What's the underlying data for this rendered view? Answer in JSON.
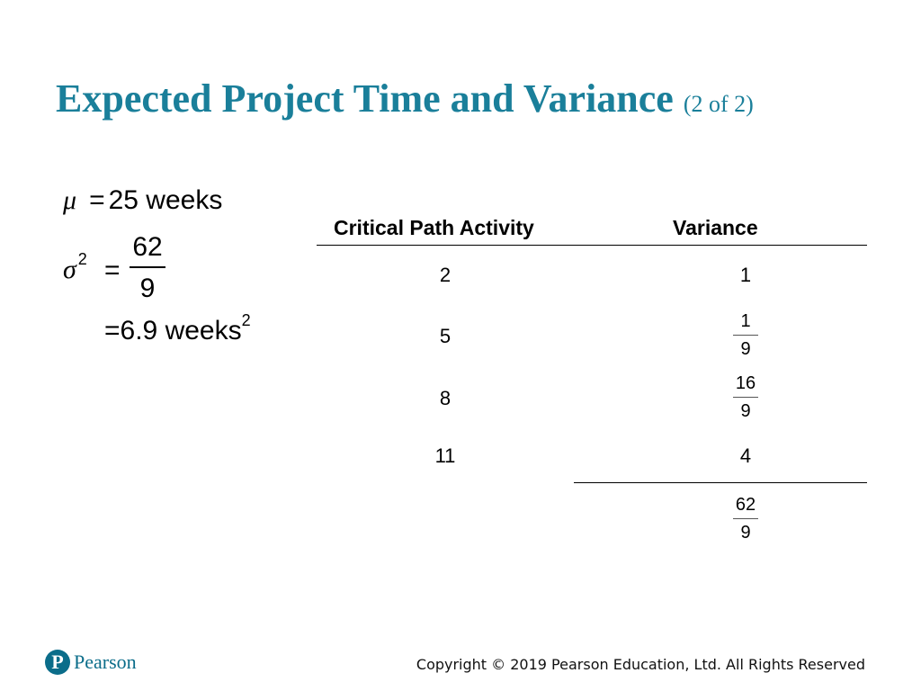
{
  "title": {
    "main": "Expected Project Time and Variance",
    "sub": "(2 of 2)"
  },
  "formulas": {
    "mu_symbol": "μ",
    "mu_rhs": "25 weeks",
    "sigma_symbol": "σ",
    "sigma_exp": "2",
    "equals": "=",
    "sigma_frac_num": "62",
    "sigma_frac_den": "9",
    "approx_value": "6.9 weeks",
    "approx_exp": "2"
  },
  "table": {
    "headers": {
      "activity": "Critical Path Activity",
      "variance": "Variance"
    },
    "rows": [
      {
        "activity": "2",
        "variance": "1"
      },
      {
        "activity": "5",
        "variance_num": "1",
        "variance_den": "9"
      },
      {
        "activity": "8",
        "variance_num": "16",
        "variance_den": "9"
      },
      {
        "activity": "11",
        "variance": "4"
      }
    ],
    "total": {
      "num": "62",
      "den": "9"
    }
  },
  "footer": {
    "logo_letter": "P",
    "logo_text": "Pearson",
    "copyright": "Copyright © 2019 Pearson Education, Ltd. All Rights Reserved"
  }
}
